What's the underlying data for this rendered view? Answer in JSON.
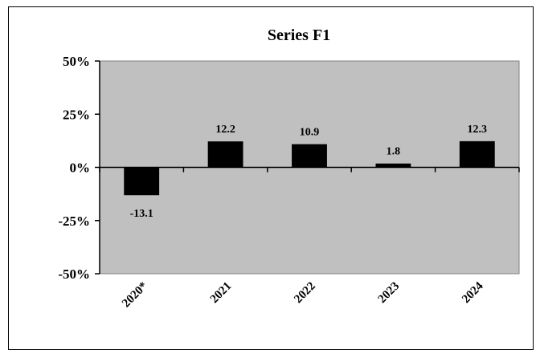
{
  "chart_data": {
    "type": "bar",
    "title": "Series F1",
    "xlabel": "",
    "ylabel": "",
    "categories": [
      "2020*",
      "2021",
      "2022",
      "2023",
      "2024"
    ],
    "values": [
      -13.1,
      12.2,
      10.9,
      1.8,
      12.3
    ],
    "data_labels": [
      "-13.1",
      "12.2",
      "10.9",
      "1.8",
      "12.3"
    ],
    "ylim": [
      -50,
      50
    ],
    "yticks": [
      50,
      25,
      0,
      -25,
      -50
    ],
    "ytick_labels": [
      "50%",
      "25%",
      "0%",
      "-25%",
      "-50%"
    ],
    "grid": false,
    "legend": "none",
    "colors": {
      "plot_background": "#c0c0c0",
      "bar_fill": "#000000",
      "page_background": "#ffffff"
    }
  }
}
